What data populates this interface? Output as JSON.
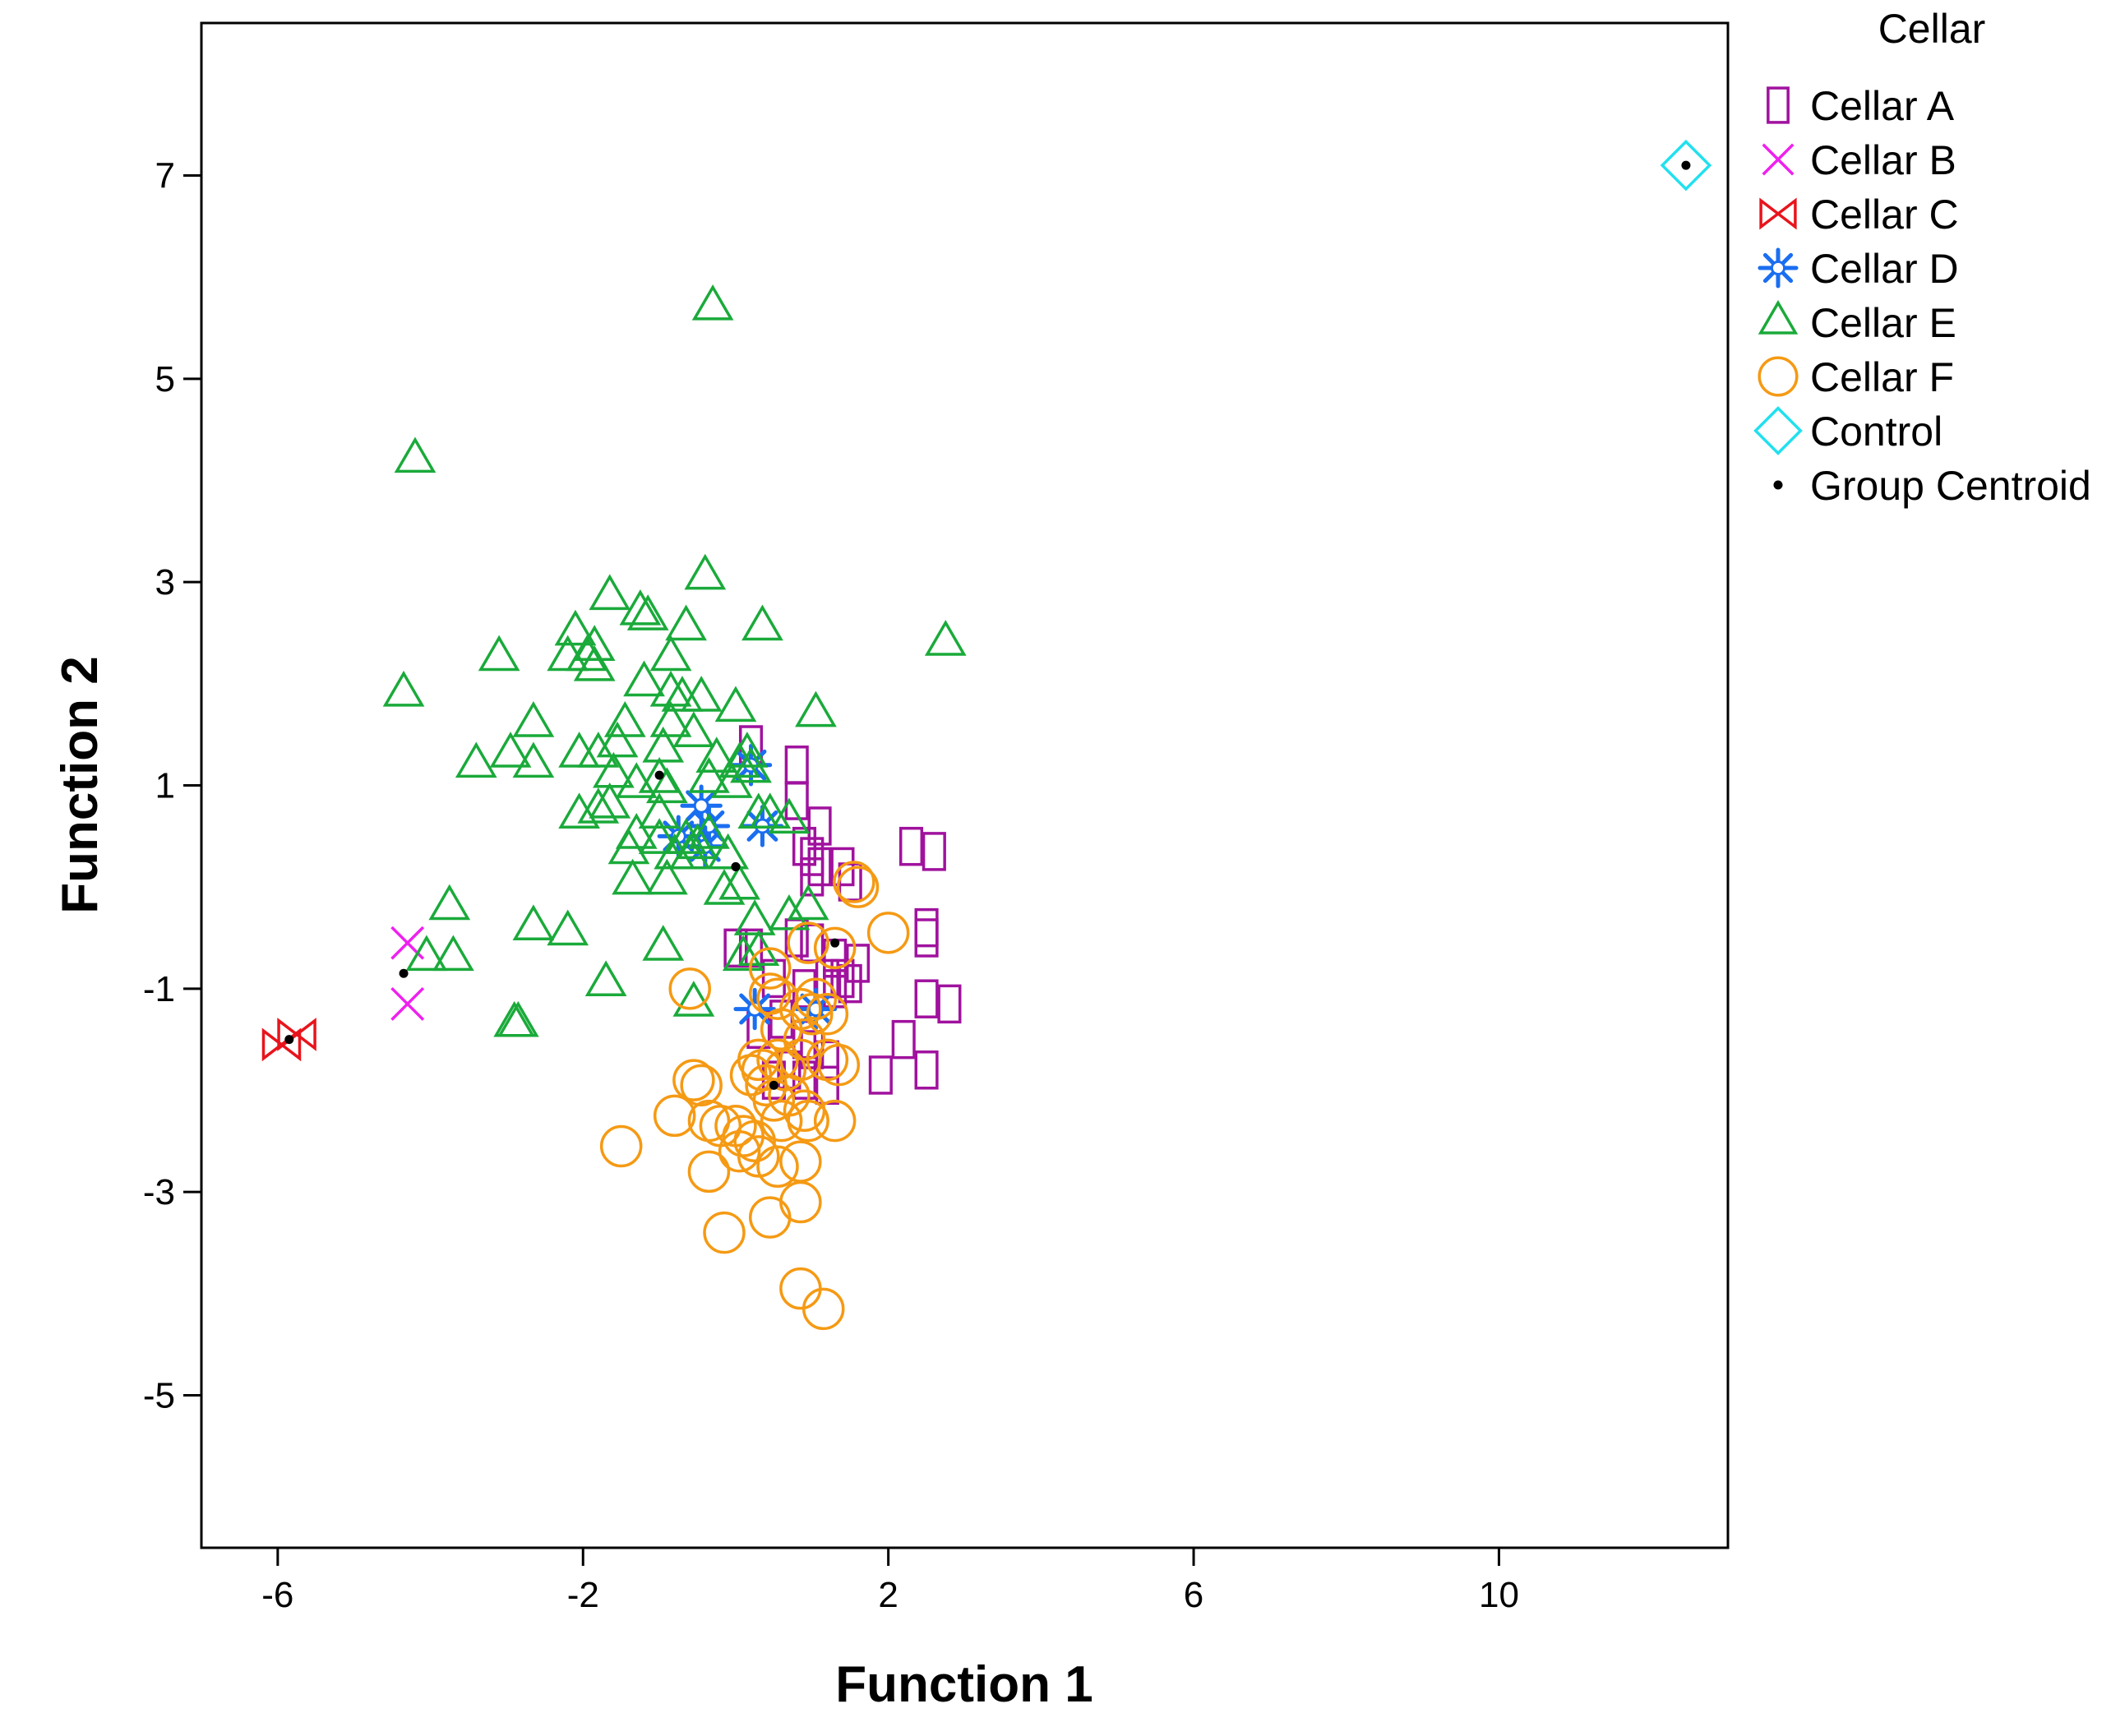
{
  "chart_data": {
    "type": "scatter",
    "title": "",
    "xlabel": "Function 1",
    "ylabel": "Function 2",
    "xlim": [
      -7,
      13
    ],
    "ylim": [
      -6.5,
      8.5
    ],
    "xticks": [
      -6,
      -2,
      2,
      6,
      10
    ],
    "yticks": [
      -5,
      -3,
      -1,
      1,
      3,
      5,
      7
    ],
    "xtick_labels": [
      "-6",
      "-2",
      "2",
      "6",
      "10"
    ],
    "ytick_labels": [
      "-5",
      "-3",
      "-1",
      "1",
      "3",
      "5",
      "7"
    ],
    "grid": false,
    "legend": {
      "title": "Cellar",
      "placement": "right-top",
      "entries": [
        {
          "name": "Cellar A",
          "marker": "rect",
          "color": "#a0129e"
        },
        {
          "name": "Cellar B",
          "marker": "x",
          "color": "#ee20ee"
        },
        {
          "name": "Cellar C",
          "marker": "bowtie",
          "color": "#e8141c"
        },
        {
          "name": "Cellar D",
          "marker": "star",
          "color": "#1a6ef0"
        },
        {
          "name": "Cellar E",
          "marker": "triangle",
          "color": "#1aaa3a"
        },
        {
          "name": "Cellar F",
          "marker": "circle",
          "color": "#f59a14"
        },
        {
          "name": "Control",
          "marker": "diamond",
          "color": "#22e0ee"
        },
        {
          "name": "Group Centroid",
          "marker": "centroid",
          "color": "#000000"
        }
      ]
    },
    "series": [
      {
        "name": "Cellar A",
        "marker": "rect",
        "color": "#a0129e",
        "points": [
          [
            0.2,
            1.4
          ],
          [
            0.8,
            1.2
          ],
          [
            0.8,
            0.85
          ],
          [
            1.1,
            0.6
          ],
          [
            0.9,
            0.4
          ],
          [
            1.0,
            0.3
          ],
          [
            1.1,
            0.2
          ],
          [
            1.0,
            0.1
          ],
          [
            1.4,
            0.2
          ],
          [
            1.5,
            0.05
          ],
          [
            2.3,
            0.4
          ],
          [
            2.6,
            0.35
          ],
          [
            2.5,
            -0.4
          ],
          [
            2.5,
            -0.5
          ],
          [
            0.0,
            -0.6
          ],
          [
            0.2,
            -0.6
          ],
          [
            0.8,
            -0.5
          ],
          [
            1.0,
            -0.55
          ],
          [
            1.3,
            -0.7
          ],
          [
            1.6,
            -0.75
          ],
          [
            0.5,
            -0.9
          ],
          [
            1.2,
            -0.9
          ],
          [
            1.3,
            -1.0
          ],
          [
            1.4,
            -0.9
          ],
          [
            1.5,
            -0.95
          ],
          [
            0.9,
            -1.0
          ],
          [
            2.5,
            -1.1
          ],
          [
            2.8,
            -1.15
          ],
          [
            0.3,
            -1.4
          ],
          [
            0.6,
            -1.3
          ],
          [
            0.9,
            -1.5
          ],
          [
            1.0,
            -1.6
          ],
          [
            2.2,
            -1.5
          ],
          [
            1.2,
            -1.7
          ],
          [
            0.7,
            -1.8
          ],
          [
            1.9,
            -1.85
          ],
          [
            2.5,
            -1.8
          ],
          [
            1.2,
            -1.95
          ],
          [
            0.5,
            -1.9
          ],
          [
            0.9,
            -1.9
          ]
        ]
      },
      {
        "name": "Cellar B",
        "marker": "x",
        "color": "#ee20ee",
        "points": [
          [
            -4.3,
            -0.55
          ],
          [
            -4.3,
            -1.15
          ]
        ]
      },
      {
        "name": "Cellar C",
        "marker": "bowtie",
        "color": "#e8141c",
        "points": [
          [
            -5.95,
            -1.55
          ],
          [
            -5.75,
            -1.45
          ]
        ]
      },
      {
        "name": "Cellar D",
        "marker": "star",
        "color": "#1a6ef0",
        "points": [
          [
            0.2,
            1.2
          ],
          [
            -0.45,
            0.8
          ],
          [
            -0.35,
            0.6
          ],
          [
            -0.75,
            0.5
          ],
          [
            -0.4,
            0.4
          ],
          [
            0.35,
            0.6
          ],
          [
            0.25,
            -1.2
          ],
          [
            1.05,
            -1.2
          ]
        ]
      },
      {
        "name": "Cellar E",
        "marker": "triangle",
        "color": "#1aaa3a",
        "points": [
          [
            -0.3,
            5.7
          ],
          [
            -4.2,
            4.2
          ],
          [
            -0.4,
            3.05
          ],
          [
            -1.65,
            2.85
          ],
          [
            -1.25,
            2.7
          ],
          [
            -1.15,
            2.65
          ],
          [
            -0.65,
            2.55
          ],
          [
            0.35,
            2.55
          ],
          [
            -2.1,
            2.5
          ],
          [
            -1.85,
            2.35
          ],
          [
            -3.1,
            2.25
          ],
          [
            -2.2,
            2.25
          ],
          [
            -1.95,
            2.25
          ],
          [
            -1.85,
            2.15
          ],
          [
            -1.2,
            2.0
          ],
          [
            -0.85,
            2.25
          ],
          [
            2.75,
            2.4
          ],
          [
            -4.35,
            1.9
          ],
          [
            -0.85,
            1.9
          ],
          [
            -0.7,
            1.85
          ],
          [
            -0.45,
            1.85
          ],
          [
            0.0,
            1.75
          ],
          [
            1.05,
            1.7
          ],
          [
            -2.65,
            1.6
          ],
          [
            -1.45,
            1.6
          ],
          [
            -0.85,
            1.6
          ],
          [
            -0.55,
            1.5
          ],
          [
            -1.55,
            1.4
          ],
          [
            -1.8,
            1.3
          ],
          [
            -0.95,
            1.35
          ],
          [
            -2.05,
            1.3
          ],
          [
            -2.95,
            1.3
          ],
          [
            -3.4,
            1.2
          ],
          [
            -2.65,
            1.2
          ],
          [
            -0.25,
            1.25
          ],
          [
            0.05,
            1.2
          ],
          [
            0.15,
            1.3
          ],
          [
            0.2,
            1.15
          ],
          [
            -1.6,
            1.1
          ],
          [
            -1.3,
            1.0
          ],
          [
            -1.0,
            1.05
          ],
          [
            -0.9,
            0.95
          ],
          [
            -0.35,
            1.05
          ],
          [
            -0.05,
            1.0
          ],
          [
            -1.65,
            0.8
          ],
          [
            -1.8,
            0.75
          ],
          [
            -2.05,
            0.7
          ],
          [
            -1.0,
            0.7
          ],
          [
            0.3,
            0.7
          ],
          [
            0.45,
            0.7
          ],
          [
            0.7,
            0.65
          ],
          [
            -1.3,
            0.5
          ],
          [
            -1.0,
            0.45
          ],
          [
            -0.65,
            0.45
          ],
          [
            -0.5,
            0.4
          ],
          [
            -0.35,
            0.5
          ],
          [
            -0.8,
            0.3
          ],
          [
            -0.6,
            0.3
          ],
          [
            -0.1,
            0.3
          ],
          [
            -1.4,
            0.35
          ],
          [
            -1.35,
            0.05
          ],
          [
            -0.9,
            0.05
          ],
          [
            -0.15,
            -0.05
          ],
          [
            0.05,
            0.0
          ],
          [
            -3.75,
            -0.2
          ],
          [
            -2.65,
            -0.4
          ],
          [
            -2.2,
            -0.45
          ],
          [
            0.25,
            -0.35
          ],
          [
            0.7,
            -0.3
          ],
          [
            0.95,
            -0.2
          ],
          [
            -0.95,
            -0.6
          ],
          [
            -4.05,
            -0.7
          ],
          [
            -3.7,
            -0.7
          ],
          [
            0.1,
            -0.7
          ],
          [
            0.3,
            -0.65
          ],
          [
            -1.7,
            -0.95
          ],
          [
            -0.55,
            -1.15
          ],
          [
            -2.85,
            -1.35
          ],
          [
            -2.9,
            -1.35
          ]
        ]
      },
      {
        "name": "Cellar F",
        "marker": "circle",
        "color": "#f59a14",
        "points": [
          [
            1.55,
            0.05
          ],
          [
            1.6,
            0.0
          ],
          [
            2.0,
            -0.45
          ],
          [
            1.3,
            -0.6
          ],
          [
            0.95,
            -0.55
          ],
          [
            0.45,
            -0.8
          ],
          [
            -0.6,
            -1.0
          ],
          [
            0.45,
            -1.05
          ],
          [
            0.55,
            -1.1
          ],
          [
            1.05,
            -1.1
          ],
          [
            0.85,
            -1.2
          ],
          [
            1.0,
            -1.25
          ],
          [
            1.2,
            -1.25
          ],
          [
            0.6,
            -1.4
          ],
          [
            0.9,
            -1.5
          ],
          [
            0.3,
            -1.7
          ],
          [
            0.55,
            -1.7
          ],
          [
            0.85,
            -1.7
          ],
          [
            0.65,
            -1.8
          ],
          [
            1.2,
            -1.7
          ],
          [
            1.35,
            -1.75
          ],
          [
            0.35,
            -1.8
          ],
          [
            0.2,
            -1.85
          ],
          [
            -0.55,
            -1.9
          ],
          [
            -0.45,
            -1.95
          ],
          [
            0.4,
            -1.95
          ],
          [
            0.7,
            -2.05
          ],
          [
            0.5,
            -2.1
          ],
          [
            0.9,
            -2.2
          ],
          [
            -0.8,
            -2.25
          ],
          [
            -0.35,
            -2.3
          ],
          [
            -0.2,
            -2.35
          ],
          [
            0.0,
            -2.35
          ],
          [
            0.6,
            -2.3
          ],
          [
            0.95,
            -2.3
          ],
          [
            1.3,
            -2.3
          ],
          [
            0.1,
            -2.45
          ],
          [
            0.25,
            -2.5
          ],
          [
            0.05,
            -2.6
          ],
          [
            0.3,
            -2.65
          ],
          [
            -1.5,
            -2.55
          ],
          [
            -0.35,
            -2.8
          ],
          [
            0.55,
            -2.75
          ],
          [
            0.85,
            -2.7
          ],
          [
            0.85,
            -3.1
          ],
          [
            0.45,
            -3.25
          ],
          [
            -0.15,
            -3.4
          ],
          [
            0.85,
            -3.95
          ],
          [
            1.15,
            -4.15
          ]
        ]
      },
      {
        "name": "Control",
        "marker": "diamond",
        "color": "#22e0ee",
        "points": [
          [
            12.45,
            7.1
          ]
        ]
      },
      {
        "name": "Group Centroid",
        "marker": "centroid",
        "color": "#000000",
        "points": [
          [
            -5.85,
            -1.5
          ],
          [
            -4.35,
            -0.85
          ],
          [
            -1.0,
            1.1
          ],
          [
            0.0,
            0.2
          ],
          [
            0.5,
            -1.95
          ],
          [
            1.3,
            -0.55
          ],
          [
            12.45,
            7.1
          ]
        ]
      }
    ]
  }
}
